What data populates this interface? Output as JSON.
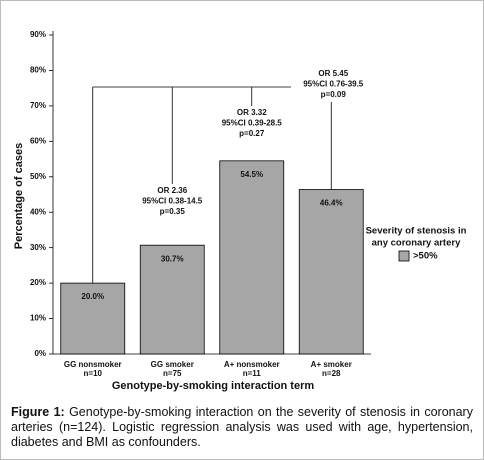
{
  "chart_data": {
    "type": "bar",
    "categories": [
      "GG nonsmoker",
      "GG smoker",
      "A+ nonsmoker",
      "A+ smoker"
    ],
    "category_counts": [
      "n=10",
      "n=75",
      "n=11",
      "n=28"
    ],
    "series": [
      {
        "name": ">50%",
        "color": "#a6a6a6",
        "values": [
          20.0,
          30.7,
          54.5,
          46.4
        ],
        "value_labels": [
          "20.0%",
          "30.7%",
          "54.5%",
          "46.4%"
        ]
      }
    ],
    "ylim": [
      0,
      90
    ],
    "yticks": [
      {
        "value": 0,
        "label": "0%"
      },
      {
        "value": 10,
        "label": "10%"
      },
      {
        "value": 20,
        "label": "20%"
      },
      {
        "value": 30,
        "label": "30%"
      },
      {
        "value": 40,
        "label": "40%"
      },
      {
        "value": 50,
        "label": "50%"
      },
      {
        "value": 60,
        "label": "60%"
      },
      {
        "value": 70,
        "label": "70%"
      },
      {
        "value": 80,
        "label": "80%"
      },
      {
        "value": 90,
        "label": "90%"
      }
    ],
    "ylabel": "Percentage of cases",
    "xlabel": "Genotype-by-smoking interaction term",
    "legend_title": [
      "Severity of stenosis in",
      "any coronary artery"
    ],
    "annotations": [
      {
        "lines": [
          "OR 2.36",
          "95%CI 0.38-14.5",
          "p=0.35"
        ]
      },
      {
        "lines": [
          "OR 3.32",
          "95%CI 0.39-28.5",
          "p=0.27"
        ]
      },
      {
        "lines": [
          "OR 5.45",
          "95%CI 0.76-39.5",
          "p=0.09"
        ]
      }
    ]
  },
  "caption": {
    "label": "Figure 1:",
    "text": "Genotype-by-smoking interaction on the severity of stenosis in coronary arteries (n=124). Logistic regression analysis was used with age, hypertension, diabetes and BMI as confounders."
  }
}
